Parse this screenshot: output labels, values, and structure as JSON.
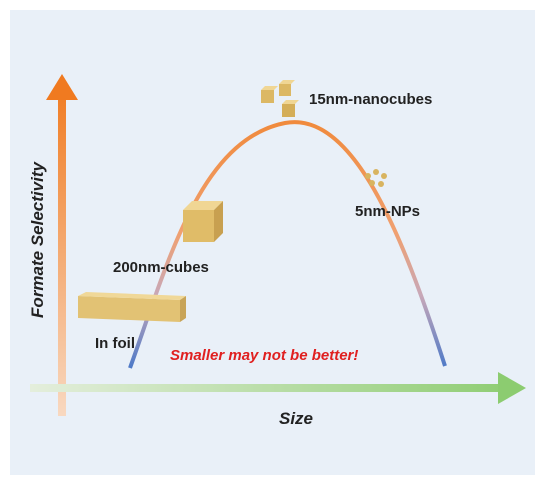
{
  "axes": {
    "y_label": "Formate Selectivity",
    "x_label": "Size"
  },
  "labels": {
    "nanocubes": "15nm-nanocubes",
    "nps": "5nm-NPs",
    "cubes": "200nm-cubes",
    "foil": "In foil"
  },
  "note": "Smaller may not be better!"
}
